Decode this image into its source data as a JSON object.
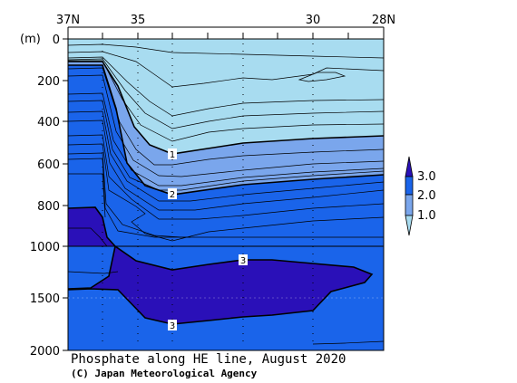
{
  "chart_data": {
    "type": "heatmap",
    "title": "Phosphate along HE line, August 2020",
    "credit": "(C) Japan Meteorological Agency",
    "ylabel": "(m)",
    "x_ticks": [
      "37N",
      "35",
      "30",
      "28N"
    ],
    "y_ticks": [
      "0",
      "200",
      "400",
      "600",
      "800",
      "1000",
      "1500",
      "2000"
    ],
    "colorbar": {
      "labels": [
        "3.0",
        "2.0",
        "1.0"
      ],
      "levels": [
        {
          "range": "<1.0",
          "color": "#a8dcf0"
        },
        {
          "range": "1.0-2.0",
          "color": "#7aa6ec"
        },
        {
          "range": "2.0-3.0",
          "color": "#1a64ea"
        },
        {
          "range": ">3.0",
          "color": "#2a10b8"
        }
      ]
    },
    "contour_labels": [
      {
        "text": "1",
        "x": 34.0,
        "depth": 560
      },
      {
        "text": "2",
        "x": 34.0,
        "depth": 740
      },
      {
        "text": "3",
        "x": 32.0,
        "depth": 1080
      },
      {
        "text": "3",
        "x": 34.0,
        "depth": 1700
      }
    ]
  }
}
